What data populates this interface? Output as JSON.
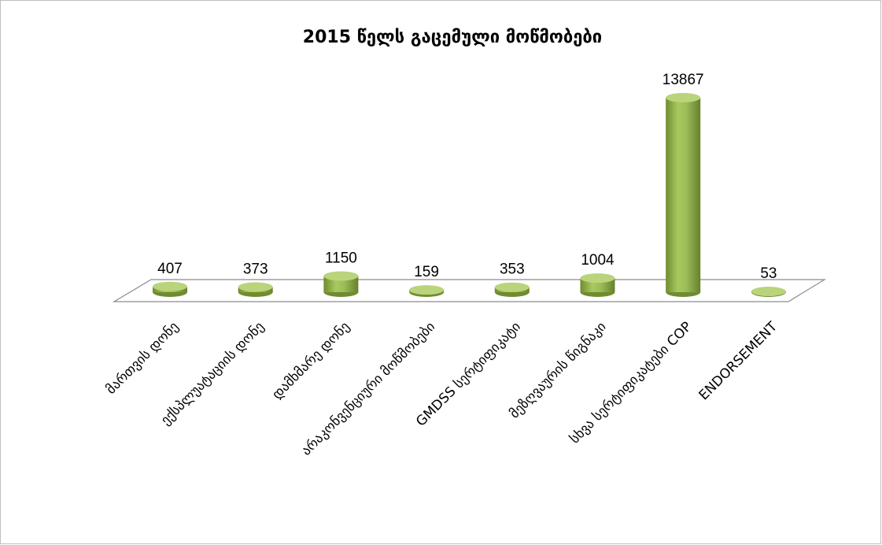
{
  "chart_data": {
    "type": "bar3d",
    "title": "2015 წელს გაცემული მოწმობები",
    "categories": [
      "მართვის დონე",
      "ექსპლუატაციის დონე",
      "დამხმარე დონე",
      "არაკონვენციური მოწმობები",
      "GMDSS სერტიფიკატი",
      "მეზღვაურის წიგნაკი",
      "სხვა სერტიფიკატები COP",
      "ENDORSEMENT"
    ],
    "values": [
      407,
      373,
      1150,
      159,
      353,
      1004,
      13867,
      53
    ],
    "color": "#9bbb59"
  }
}
